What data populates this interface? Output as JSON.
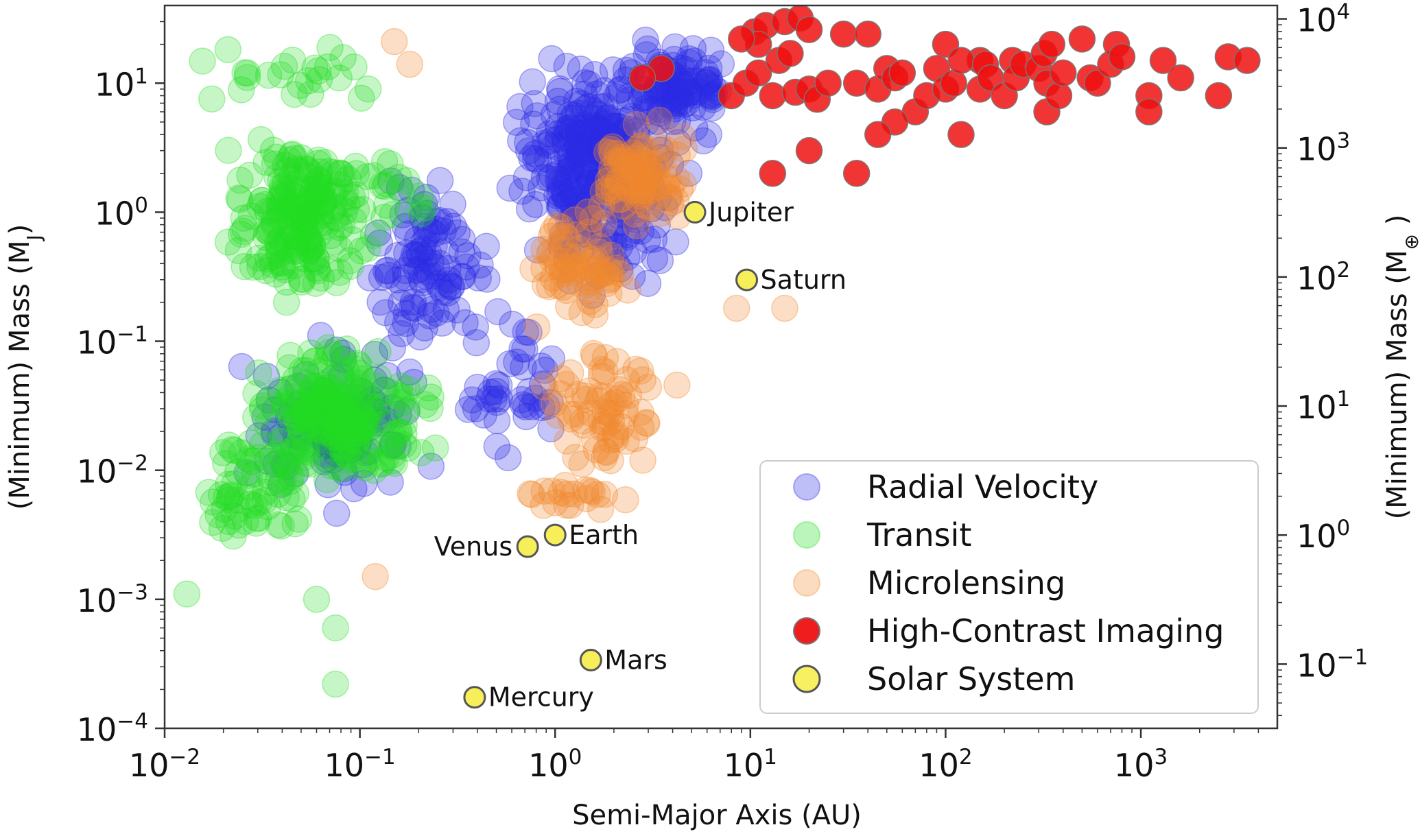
{
  "chart_data": {
    "type": "scatter",
    "xlabel": "Semi-Major Axis (AU)",
    "ylabel_left": "(Minimum) Mass (M",
    "ylabel_left_sub": "J",
    "ylabel_left_close": ")",
    "ylabel_right": "(Minimum) Mass (M",
    "ylabel_right_sub": "⊕",
    "ylabel_right_close": " )",
    "x_scale": "log",
    "y_scale": "log",
    "xlim": [
      0.01,
      5000
    ],
    "ylim": [
      0.0001,
      40
    ],
    "right_ylim_earth_masses": [
      0.0318,
      12700
    ],
    "x_ticks": [
      {
        "value": 0.01,
        "base": "10",
        "exp": "−2"
      },
      {
        "value": 0.1,
        "base": "10",
        "exp": "−1"
      },
      {
        "value": 1,
        "base": "10",
        "exp": "0"
      },
      {
        "value": 10,
        "base": "10",
        "exp": "1"
      },
      {
        "value": 100,
        "base": "10",
        "exp": "2"
      },
      {
        "value": 1000,
        "base": "10",
        "exp": "3"
      }
    ],
    "y_ticks_left": [
      {
        "value": 0.0001,
        "base": "10",
        "exp": "−4"
      },
      {
        "value": 0.001,
        "base": "10",
        "exp": "−3"
      },
      {
        "value": 0.01,
        "base": "10",
        "exp": "−2"
      },
      {
        "value": 0.1,
        "base": "10",
        "exp": "−1"
      },
      {
        "value": 1,
        "base": "10",
        "exp": "0"
      },
      {
        "value": 10,
        "base": "10",
        "exp": "1"
      }
    ],
    "y_ticks_right": [
      {
        "value": 0.1,
        "base": "10",
        "exp": "−1"
      },
      {
        "value": 1,
        "base": "10",
        "exp": "0"
      },
      {
        "value": 10,
        "base": "10",
        "exp": "1"
      },
      {
        "value": 100,
        "base": "10",
        "exp": "2"
      },
      {
        "value": 1000,
        "base": "10",
        "exp": "3"
      },
      {
        "value": 10000,
        "base": "10",
        "exp": "4"
      }
    ],
    "grid": false,
    "legend_position": "bottom-right",
    "series": [
      {
        "name": "Radial Velocity",
        "color": "#2a2ae6",
        "opacity": 0.28,
        "clusters": [
          {
            "x": [
              0.5,
              5.5
            ],
            "y": [
              0.2,
              25
            ],
            "n": 340
          },
          {
            "x": [
              2.0,
              9.0
            ],
            "y": [
              3,
              25
            ],
            "n": 90
          },
          {
            "x": [
              0.08,
              0.6
            ],
            "y": [
              0.05,
              3
            ],
            "n": 100
          },
          {
            "x": [
              0.02,
              0.3
            ],
            "y": [
              0.003,
              0.15
            ],
            "n": 110
          },
          {
            "x": [
              0.3,
              1.2
            ],
            "y": [
              0.01,
              0.2
            ],
            "n": 40
          }
        ]
      },
      {
        "name": "Transit",
        "color": "#22dd22",
        "opacity": 0.26,
        "clusters": [
          {
            "x": [
              0.018,
              0.14
            ],
            "y": [
              0.15,
              6
            ],
            "n": 210
          },
          {
            "x": [
              0.02,
              0.3
            ],
            "y": [
              0.006,
              0.12
            ],
            "n": 230
          },
          {
            "x": [
              0.01,
              0.08
            ],
            "y": [
              0.002,
              0.03
            ],
            "n": 60
          },
          {
            "x": [
              0.012,
              0.22
            ],
            "y": [
              5,
              28
            ],
            "n": 25
          },
          {
            "x": [
              0.05,
              0.4
            ],
            "y": [
              0.5,
              4
            ],
            "n": 20
          }
        ],
        "extra_points": [
          [
            0.075,
            0.00022
          ],
          [
            0.075,
            0.0006
          ],
          [
            0.06,
            0.001
          ],
          [
            0.013,
            0.0011
          ]
        ]
      },
      {
        "name": "Microlensing",
        "color": "#f28a2e",
        "opacity": 0.28,
        "clusters": [
          {
            "x": [
              1.2,
              5.5
            ],
            "y": [
              0.6,
              6
            ],
            "n": 90
          },
          {
            "x": [
              0.6,
              3.0
            ],
            "y": [
              0.1,
              1.2
            ],
            "n": 70
          },
          {
            "x": [
              0.7,
              5.0
            ],
            "y": [
              0.008,
              0.12
            ],
            "n": 70
          },
          {
            "x": [
              0.6,
              3.5
            ],
            "y": [
              0.003,
              0.01
            ],
            "n": 20
          }
        ],
        "extra_points": [
          [
            8.5,
            0.18
          ],
          [
            15,
            0.18
          ],
          [
            0.12,
            0.0015
          ],
          [
            0.15,
            21
          ],
          [
            0.18,
            14
          ]
        ]
      },
      {
        "name": "High-Contrast Imaging",
        "color": "#ee1111",
        "opacity": 0.85,
        "points": [
          [
            10.5,
            25
          ],
          [
            12,
            28
          ],
          [
            15,
            30
          ],
          [
            18,
            32
          ],
          [
            20,
            26
          ],
          [
            11,
            20
          ],
          [
            9,
            22
          ],
          [
            30,
            24
          ],
          [
            40,
            24
          ],
          [
            100,
            20
          ],
          [
            150,
            15
          ],
          [
            8,
            8
          ],
          [
            9.5,
            10
          ],
          [
            11,
            12
          ],
          [
            13,
            8
          ],
          [
            17,
            8.5
          ],
          [
            20,
            9
          ],
          [
            22,
            7.5
          ],
          [
            14,
            15
          ],
          [
            16,
            17
          ],
          [
            25,
            10
          ],
          [
            35,
            10
          ],
          [
            45,
            9
          ],
          [
            50,
            13
          ],
          [
            55,
            11
          ],
          [
            60,
            12
          ],
          [
            70,
            6
          ],
          [
            80,
            8
          ],
          [
            90,
            13
          ],
          [
            100,
            9
          ],
          [
            110,
            10
          ],
          [
            120,
            15
          ],
          [
            150,
            9
          ],
          [
            160,
            14
          ],
          [
            170,
            11
          ],
          [
            200,
            8
          ],
          [
            220,
            15
          ],
          [
            230,
            11
          ],
          [
            250,
            14
          ],
          [
            300,
            13
          ],
          [
            320,
            17
          ],
          [
            330,
            10
          ],
          [
            350,
            20
          ],
          [
            330,
            6
          ],
          [
            380,
            8
          ],
          [
            400,
            12
          ],
          [
            500,
            22
          ],
          [
            550,
            11
          ],
          [
            600,
            10
          ],
          [
            700,
            14
          ],
          [
            750,
            20
          ],
          [
            800,
            16
          ],
          [
            1100,
            8
          ],
          [
            1100,
            6
          ],
          [
            1300,
            15
          ],
          [
            1600,
            11
          ],
          [
            2500,
            8
          ],
          [
            2800,
            16
          ],
          [
            3500,
            15
          ],
          [
            55,
            5
          ],
          [
            45,
            4
          ],
          [
            120,
            4
          ],
          [
            20,
            3
          ],
          [
            13,
            2
          ],
          [
            35,
            2
          ],
          [
            3.5,
            13
          ],
          [
            2.8,
            11
          ]
        ]
      },
      {
        "name": "Solar System",
        "color": "#f7ef5a",
        "opacity": 0.95,
        "points": [
          {
            "x": 0.387,
            "y": 0.000174,
            "label": "Mercury"
          },
          {
            "x": 0.723,
            "y": 0.00256,
            "label": "Venus"
          },
          {
            "x": 1.0,
            "y": 0.00315,
            "label": "Earth"
          },
          {
            "x": 1.524,
            "y": 0.000338,
            "label": "Mars"
          },
          {
            "x": 5.2,
            "y": 1.0,
            "label": "Jupiter"
          },
          {
            "x": 9.58,
            "y": 0.299,
            "label": "Saturn"
          }
        ]
      }
    ]
  }
}
